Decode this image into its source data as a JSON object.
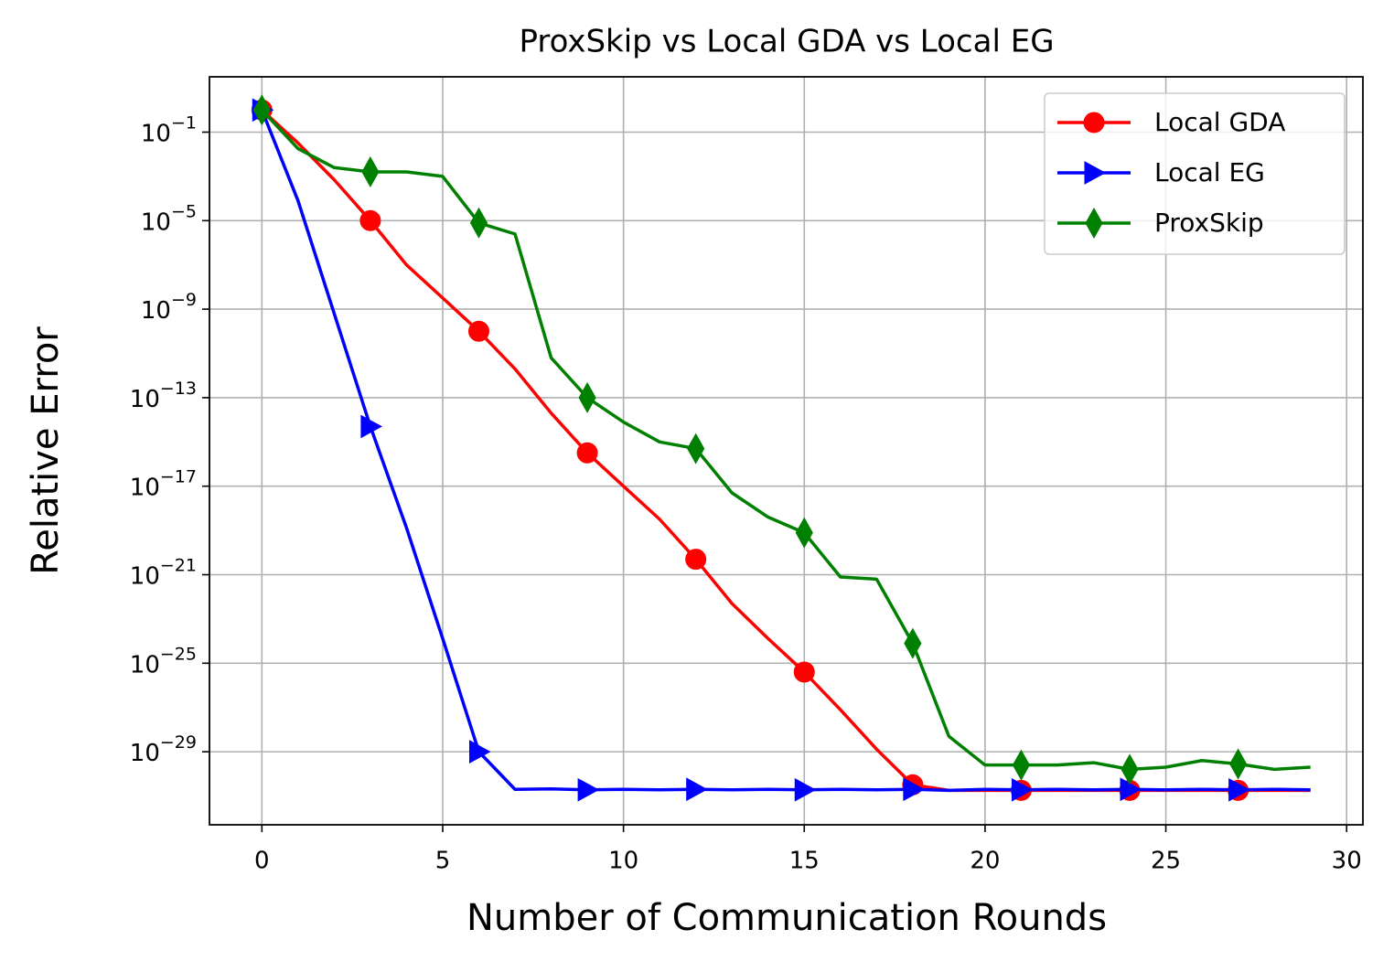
{
  "chart_data": {
    "type": "line",
    "title": "ProxSkip vs Local GDA vs Local EG",
    "xlabel": "Number of Communication Rounds",
    "ylabel": "Relative Error",
    "x": [
      0,
      1,
      2,
      3,
      4,
      5,
      6,
      7,
      8,
      9,
      10,
      11,
      12,
      13,
      14,
      15,
      16,
      17,
      18,
      19,
      20,
      21,
      22,
      23,
      24,
      25,
      26,
      27,
      28,
      29
    ],
    "series": [
      {
        "name": "Local GDA",
        "color": "#ff0000",
        "marker": "o",
        "values": [
          1,
          0.032,
          0.0007,
          1e-05,
          1e-07,
          3.2e-09,
          1e-10,
          2e-12,
          2e-14,
          3.2e-16,
          1e-17,
          3.2e-19,
          5e-21,
          5e-23,
          1.3e-24,
          4e-26,
          7.9e-28,
          1.3e-29,
          3.2e-31,
          1.8e-31,
          1.8e-31,
          1.8e-31,
          1.8e-31,
          1.8e-31,
          1.8e-31,
          1.8e-31,
          1.8e-31,
          1.8e-31,
          1.8e-31,
          1.8e-31
        ]
      },
      {
        "name": "Local EG",
        "color": "#0000ff",
        "marker": ">",
        "values": [
          1,
          7.9e-05,
          6.3e-10,
          5e-15,
          1.3e-19,
          1.3e-24,
          1e-29,
          2e-31,
          2.1e-31,
          1.9e-31,
          2e-31,
          1.9e-31,
          2e-31,
          1.9e-31,
          2e-31,
          1.9e-31,
          2e-31,
          1.9e-31,
          2e-31,
          1.8e-31,
          2e-31,
          1.9e-31,
          2e-31,
          1.9e-31,
          2e-31,
          1.9e-31,
          2e-31,
          1.9e-31,
          2e-31,
          1.9e-31
        ]
      },
      {
        "name": "ProxSkip",
        "color": "#008000",
        "marker": "d",
        "values": [
          1,
          0.018,
          0.0025,
          0.0016,
          0.0016,
          0.001,
          7.9e-06,
          2.5e-06,
          6.3e-12,
          1e-13,
          7.9e-15,
          1e-15,
          5e-16,
          5e-18,
          4e-19,
          7.9e-20,
          7.9e-22,
          6.3e-22,
          7.9e-25,
          5e-29,
          2.5e-30,
          2.5e-30,
          2.5e-30,
          3.2e-30,
          1.6e-30,
          2e-30,
          4e-30,
          2.8e-30,
          1.6e-30,
          2e-30
        ]
      }
    ],
    "markevery": 3,
    "xlim": [
      -1.45,
      30.45
    ],
    "xticks": [
      0,
      5,
      10,
      15,
      20,
      25,
      30
    ],
    "ylim": [
      5e-33,
      31.6
    ],
    "yscale": "log",
    "yticks": [
      {
        "value": 0.1,
        "label": "10−1"
      },
      {
        "value": 1e-05,
        "label": "10−5"
      },
      {
        "value": 1e-09,
        "label": "10−9"
      },
      {
        "value": 1e-13,
        "label": "10−13"
      },
      {
        "value": 1e-17,
        "label": "10−17"
      },
      {
        "value": 1e-21,
        "label": "10−21"
      },
      {
        "value": 1e-25,
        "label": "10−25"
      },
      {
        "value": 1e-29,
        "label": "10−29"
      }
    ],
    "grid": true,
    "legend": "upper right"
  }
}
